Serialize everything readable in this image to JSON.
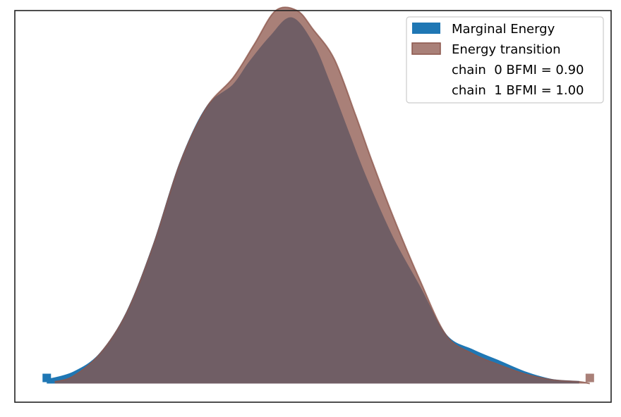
{
  "chart_data": {
    "type": "area",
    "title": "",
    "xlabel": "",
    "ylabel": "",
    "grid": false,
    "axes_ticks": false,
    "legend_placement": "top-right",
    "xlim": [
      -0.6,
      10.6
    ],
    "ylim": [
      -0.05,
      1.0
    ],
    "series": [
      {
        "name": "Marginal Energy",
        "color": "#1f77b4",
        "x": [
          0.0,
          0.5,
          1.0,
          1.5,
          2.0,
          2.5,
          3.0,
          3.5,
          3.8,
          4.2,
          4.6,
          5.0,
          5.3,
          5.7,
          6.0,
          6.5,
          7.0,
          7.5,
          8.0,
          8.5,
          9.0,
          9.5,
          10.0
        ],
        "y": [
          0.01,
          0.03,
          0.08,
          0.19,
          0.37,
          0.59,
          0.74,
          0.8,
          0.86,
          0.93,
          0.98,
          0.91,
          0.81,
          0.66,
          0.55,
          0.39,
          0.26,
          0.13,
          0.09,
          0.06,
          0.03,
          0.01,
          0.005
        ],
        "markers": [
          {
            "x": 0.0,
            "label": "start"
          }
        ]
      },
      {
        "name": "Energy transition",
        "color": "#8c564b",
        "x": [
          0.15,
          0.5,
          1.0,
          1.5,
          2.0,
          2.5,
          3.0,
          3.5,
          3.9,
          4.3,
          4.7,
          5.0,
          5.4,
          5.8,
          6.1,
          6.5,
          7.0,
          7.5,
          8.0,
          8.5,
          9.0,
          9.5,
          10.0,
          10.2
        ],
        "y": [
          0.005,
          0.02,
          0.08,
          0.19,
          0.37,
          0.59,
          0.74,
          0.82,
          0.91,
          1.0,
          1.0,
          0.95,
          0.87,
          0.72,
          0.6,
          0.45,
          0.28,
          0.13,
          0.08,
          0.05,
          0.025,
          0.01,
          0.005,
          0.0
        ],
        "markers": [
          {
            "x": 10.2,
            "label": "end"
          }
        ]
      }
    ],
    "legend": [
      {
        "label": "Marginal Energy",
        "swatch": "#1f77b4"
      },
      {
        "label": "Energy transition",
        "swatch": "#8c564b"
      },
      {
        "label": "chain  0 BFMI = 0.90",
        "swatch": null
      },
      {
        "label": "chain  1 BFMI = 1.00",
        "swatch": null
      }
    ]
  }
}
